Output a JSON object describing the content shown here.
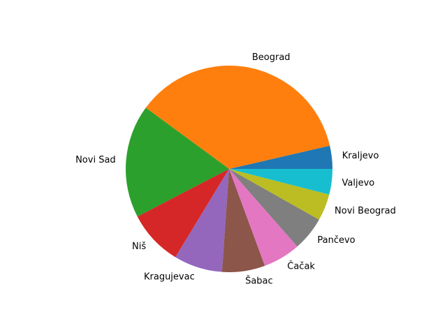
{
  "chart_data": {
    "type": "pie",
    "title": "",
    "start_angle_deg": 0,
    "direction": "counterclockwise",
    "slices": [
      {
        "label": "Kraljevo",
        "value": 3.7,
        "color": "#1f77b4"
      },
      {
        "label": "Beograd",
        "value": 37.3,
        "color": "#ff7f0e"
      },
      {
        "label": "Novi Sad",
        "value": 18.2,
        "color": "#2ca02c"
      },
      {
        "label": "Niš",
        "value": 8.9,
        "color": "#d62728"
      },
      {
        "label": "Kragujevac",
        "value": 7.8,
        "color": "#9467bd"
      },
      {
        "label": "Šabac",
        "value": 6.9,
        "color": "#8c564b"
      },
      {
        "label": "Čačak",
        "value": 6.0,
        "color": "#e377c2"
      },
      {
        "label": "Pančevo",
        "value": 5.5,
        "color": "#7f7f7f"
      },
      {
        "label": "Novi Beograd",
        "value": 4.3,
        "color": "#bcbd22"
      },
      {
        "label": "Valjevo",
        "value": 4.1,
        "color": "#17becf"
      }
    ]
  }
}
